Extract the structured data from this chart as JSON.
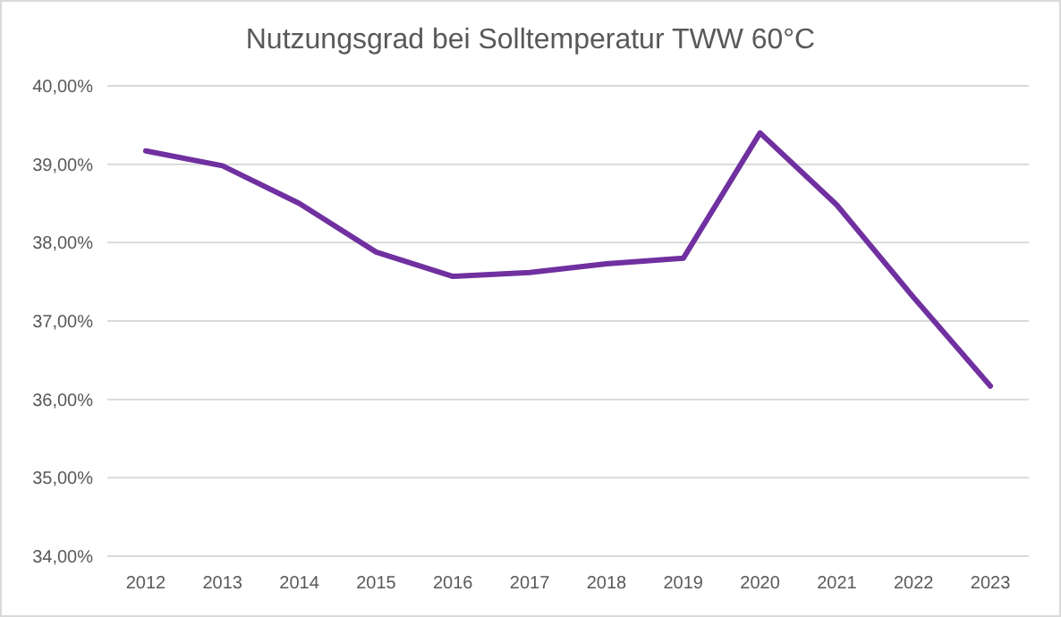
{
  "chart_data": {
    "type": "line",
    "title": "Nutzungsgrad bei Solltemperatur TWW 60°C",
    "categories": [
      "2012",
      "2013",
      "2014",
      "2015",
      "2016",
      "2017",
      "2018",
      "2019",
      "2020",
      "2021",
      "2022",
      "2023"
    ],
    "series": [
      {
        "color": "#7030a0",
        "values": [
          39.17,
          38.98,
          38.5,
          37.88,
          37.57,
          37.62,
          37.73,
          37.8,
          39.4,
          38.48,
          37.3,
          36.17
        ]
      }
    ],
    "ylim": [
      34,
      40
    ],
    "yticks": [
      {
        "value": 34,
        "label": "34,00%"
      },
      {
        "value": 35,
        "label": "35,00%"
      },
      {
        "value": 36,
        "label": "36,00%"
      },
      {
        "value": 37,
        "label": "37,00%"
      },
      {
        "value": 38,
        "label": "38,00%"
      },
      {
        "value": 39,
        "label": "39,00%"
      },
      {
        "value": 40,
        "label": "40,00%"
      }
    ],
    "grid": "y",
    "marker": "none",
    "line_style": "solid"
  }
}
